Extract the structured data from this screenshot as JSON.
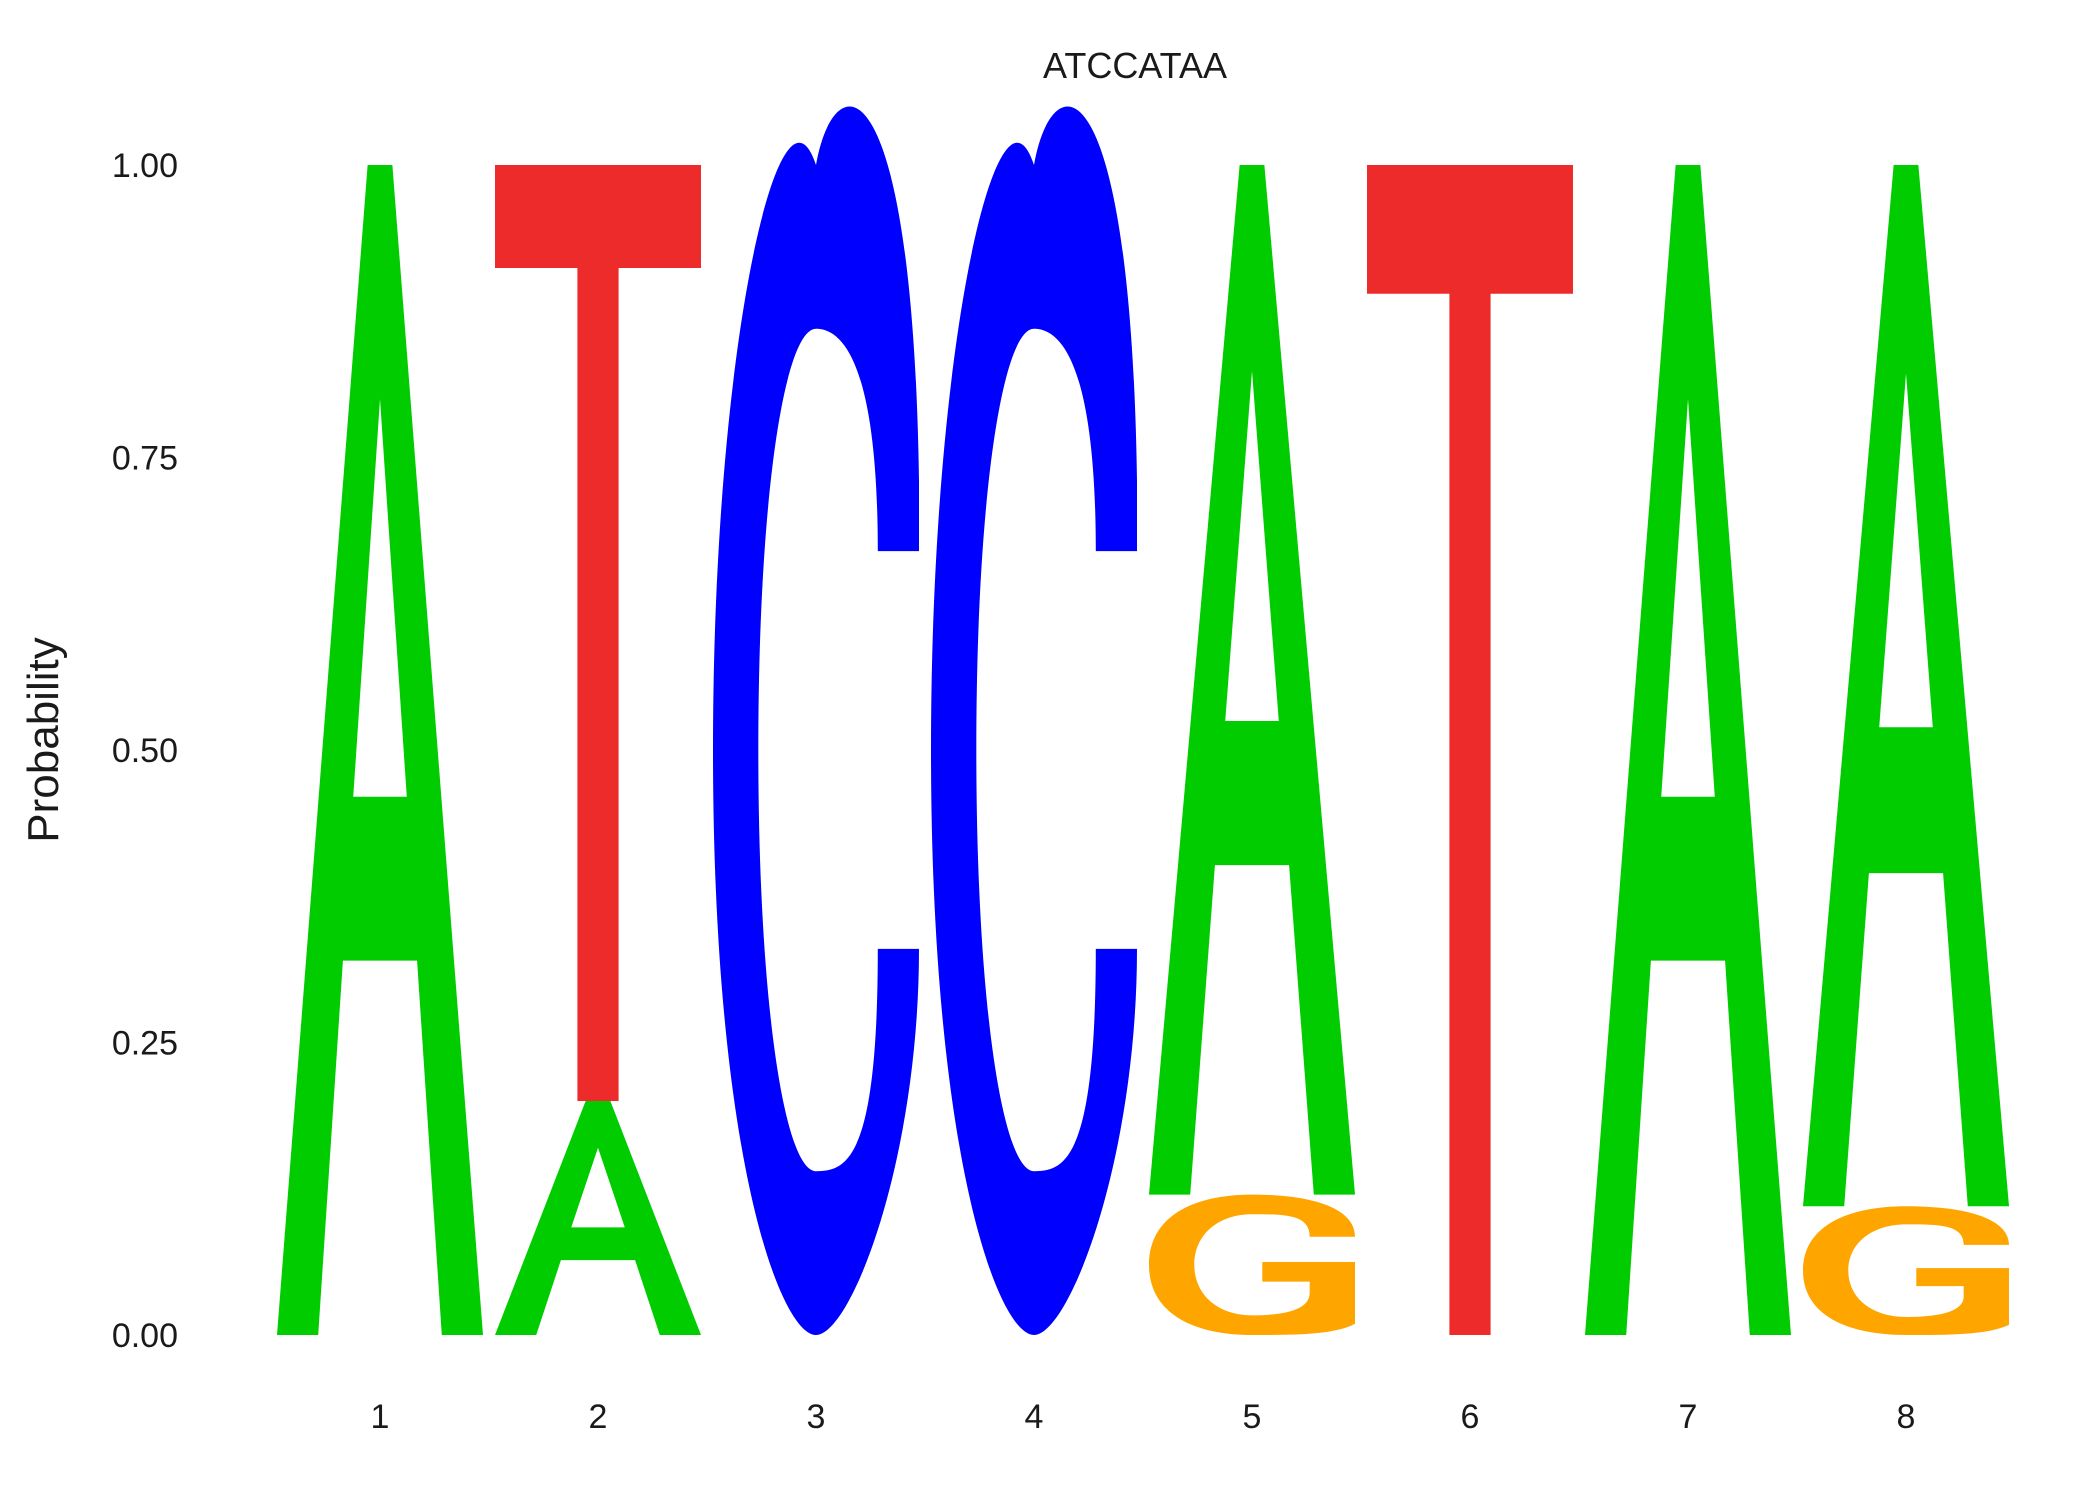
{
  "chart_data": {
    "type": "sequence-logo",
    "title": "ATCCATAA",
    "xlabel": "",
    "ylabel": "Probability",
    "ylim": [
      0,
      1
    ],
    "yticks": [
      "0.00",
      "0.25",
      "0.50",
      "0.75",
      "1.00"
    ],
    "grid": false,
    "legend": "none",
    "positions": [
      "1",
      "2",
      "3",
      "4",
      "5",
      "6",
      "7",
      "8"
    ],
    "colors": {
      "A": "#00cc00",
      "C": "#0000ff",
      "G": "#ffa500",
      "T": "#ee2b2b"
    },
    "stacks": [
      [
        {
          "letter": "A",
          "prob": 1.0
        }
      ],
      [
        {
          "letter": "A",
          "prob": 0.2
        },
        {
          "letter": "T",
          "prob": 0.8
        }
      ],
      [
        {
          "letter": "C",
          "prob": 1.0
        }
      ],
      [
        {
          "letter": "C",
          "prob": 1.0
        }
      ],
      [
        {
          "letter": "G",
          "prob": 0.12
        },
        {
          "letter": "A",
          "prob": 0.88
        }
      ],
      [
        {
          "letter": "T",
          "prob": 1.0
        }
      ],
      [
        {
          "letter": "A",
          "prob": 1.0
        }
      ],
      [
        {
          "letter": "G",
          "prob": 0.11
        },
        {
          "letter": "A",
          "prob": 0.89
        }
      ]
    ]
  }
}
